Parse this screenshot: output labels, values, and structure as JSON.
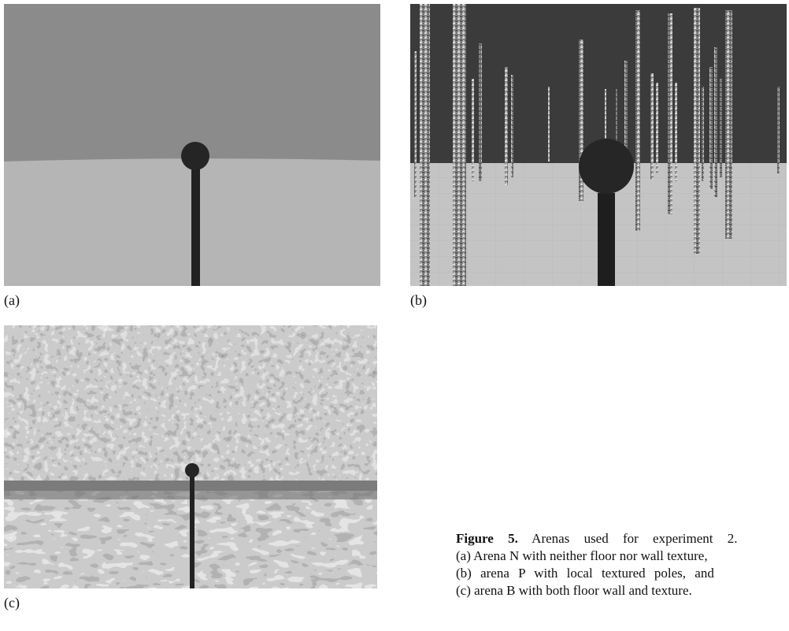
{
  "panels": [
    {
      "label": "(a)"
    },
    {
      "label": "(b)"
    },
    {
      "label": "(c)"
    }
  ],
  "caption": {
    "figure_label": "Figure 5.",
    "lines": [
      "Arenas used for experiment 2.",
      "(a) Arena N with neither floor nor wall texture,",
      "(b) arena P with local textured poles, and",
      "(c) arena B with both floor wall and texture."
    ]
  }
}
